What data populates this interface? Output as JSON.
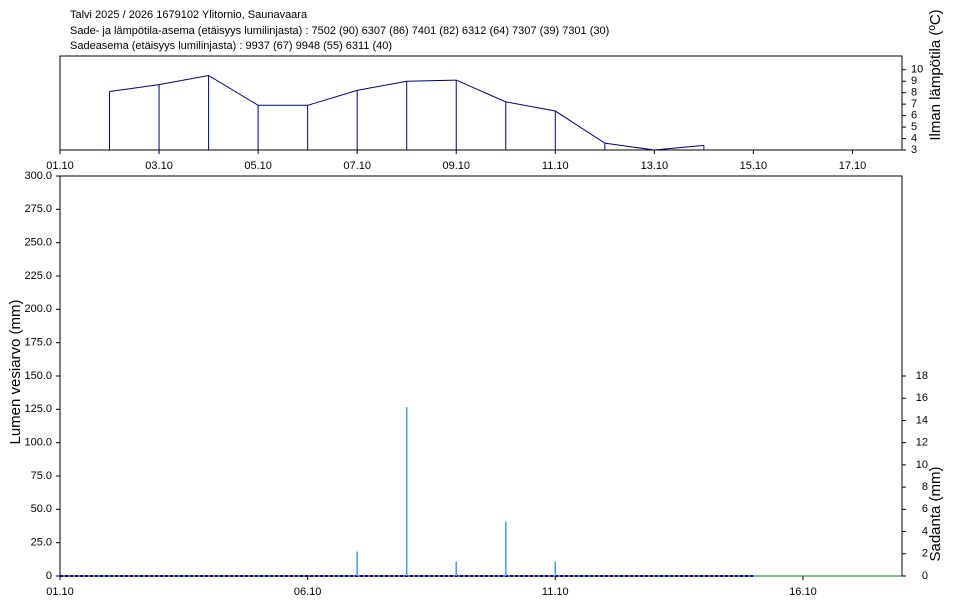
{
  "header": {
    "title": "Talvi 2025 / 2026 1679102 Ylitornio, Saunavaara",
    "stations": "Sade- ja lämpötila-asema (etäisyys lumilinjasta) :  7502 (90) 6307 (86) 7401 (82) 6312 (64) 7307 (39) 7301 (30)",
    "precip_stations": "Sadeasema (etäisyys lumilinjasta) :  9937 (67) 9948 (55) 6311 (40)"
  },
  "chart_data": [
    {
      "type": "line",
      "ylabel": "Ilman lämpötila (ºC)",
      "color": "#000080",
      "drop_lines": true,
      "x": [
        "02.10",
        "03.10",
        "04.10",
        "05.10",
        "06.10",
        "07.10",
        "08.10",
        "09.10",
        "10.10",
        "11.10",
        "12.10",
        "13.10",
        "14.10"
      ],
      "values": [
        8.1,
        8.7,
        9.5,
        6.9,
        6.9,
        8.2,
        9.0,
        9.1,
        7.2,
        6.4,
        3.6,
        3.0,
        3.4
      ],
      "xlim": [
        "01.10",
        "18.10"
      ],
      "xticks": [
        "01.10",
        "03.10",
        "05.10",
        "07.10",
        "09.10",
        "11.10",
        "13.10",
        "15.10",
        "17.10"
      ],
      "ylim": [
        3,
        11.2
      ],
      "yticks": [
        3,
        4,
        5,
        6,
        7,
        8,
        9,
        10
      ]
    },
    {
      "type": "line",
      "ylabel": "Lumen vesiarvo (mm)",
      "y2label": "Sadanta (mm)",
      "xlim": [
        "01.10",
        "18.10"
      ],
      "xticks": [
        "01.10",
        "06.10",
        "11.10",
        "16.10"
      ],
      "ylim": [
        0,
        300
      ],
      "yticks": [
        0,
        {
          "value": 25,
          "label": "25.0"
        },
        {
          "value": 50,
          "label": "50.0"
        },
        {
          "value": 75,
          "label": "75.0"
        },
        {
          "value": 100,
          "label": "100.0"
        },
        {
          "value": 125,
          "label": "125.0"
        },
        {
          "value": 150,
          "label": "150.0"
        },
        {
          "value": 175,
          "label": "175.0"
        },
        {
          "value": 200,
          "label": "200.0"
        },
        {
          "value": 225,
          "label": "225.0"
        },
        {
          "value": 250,
          "label": "250.0"
        },
        {
          "value": 275,
          "label": "275.0"
        },
        {
          "value": 300,
          "label": "300.0"
        }
      ],
      "y2lim": [
        0,
        36
      ],
      "y2ticks": [
        0,
        2,
        4,
        6,
        8,
        10,
        12,
        14,
        16,
        18
      ],
      "series": [
        {
          "type": "line",
          "color": "#0000c0",
          "dashed": true,
          "x": [
            "01.10",
            "02.10",
            "03.10",
            "04.10",
            "05.10",
            "06.10",
            "07.10",
            "08.10",
            "09.10",
            "10.10",
            "11.10",
            "12.10",
            "13.10",
            "14.10",
            "15.10"
          ],
          "values": [
            0,
            0,
            0,
            0,
            0,
            0,
            0,
            0,
            0,
            0,
            0,
            0,
            0,
            0,
            0
          ]
        },
        {
          "type": "line",
          "color": "#008000",
          "dashed": false,
          "x": [
            "15.10",
            "16.10",
            "17.10",
            "18.10"
          ],
          "values": [
            0,
            0,
            0,
            0
          ]
        },
        {
          "type": "bar",
          "axis": "y2",
          "color": "#3fa0ea",
          "x": [
            "07.10",
            "08.10",
            "09.10",
            "10.10",
            "11.10"
          ],
          "values": [
            2.2,
            15.2,
            1.3,
            4.9,
            1.3
          ]
        }
      ]
    }
  ]
}
